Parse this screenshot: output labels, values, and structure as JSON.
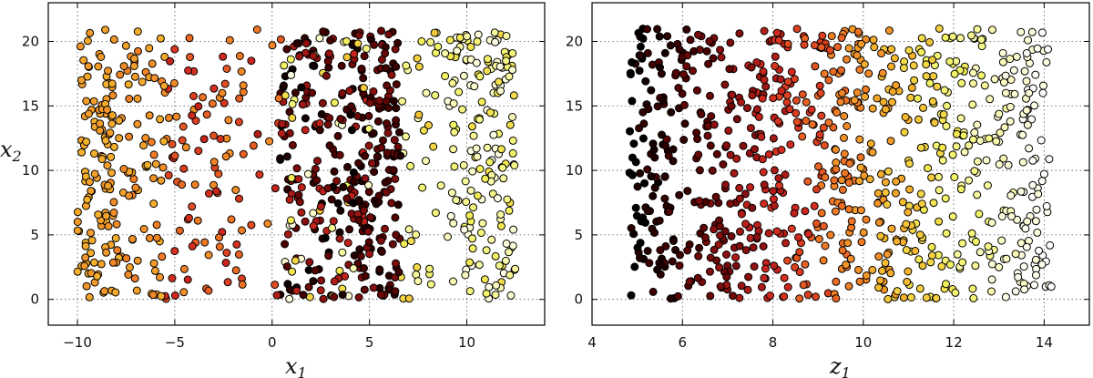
{
  "chart_data": [
    {
      "type": "scatter",
      "title": "",
      "xlabel": "x",
      "xlabel_sub": "1",
      "ylabel": "x",
      "ylabel_sub": "2",
      "xlim": [
        -11.5,
        14
      ],
      "ylim": [
        -2,
        23
      ],
      "xticks": [
        -10,
        -5,
        0,
        5,
        10
      ],
      "yticks": [
        0,
        5,
        10,
        15,
        20
      ],
      "grid": true,
      "colormap": "hot",
      "colormap_colors": [
        "#000000",
        "#4a0000",
        "#8b0f0f",
        "#d42a20",
        "#f07a25",
        "#f5b52d",
        "#f2f25c",
        "#fbfbc8",
        "#ffffff"
      ],
      "bands": [
        {
          "x_range": [
            -10,
            -8.2
          ],
          "color_levels": [
            0.55,
            0.62
          ],
          "count": 110
        },
        {
          "x_range": [
            -8.2,
            -5.5
          ],
          "color_levels": [
            0.5,
            0.62
          ],
          "count": 90
        },
        {
          "x_range": [
            -5.5,
            -1.2
          ],
          "color_levels": [
            0.35,
            0.55
          ],
          "count": 95
        },
        {
          "x_range": [
            -1.2,
            0.5
          ],
          "color_levels": [
            0.3,
            0.55
          ],
          "count": 15
        },
        {
          "x_range": [
            0.4,
            5.0
          ],
          "color_levels": [
            0.0,
            0.35
          ],
          "count": 200
        },
        {
          "x_range": [
            0.4,
            5.0
          ],
          "color_levels": [
            0.65,
            0.95
          ],
          "count": 45
        },
        {
          "x_range": [
            4.4,
            6.6
          ],
          "color_levels": [
            0.05,
            0.25
          ],
          "count": 140
        },
        {
          "x_range": [
            6.6,
            9.0
          ],
          "color_levels": [
            0.65,
            0.85
          ],
          "count": 40
        },
        {
          "x_range": [
            9.0,
            12.5
          ],
          "color_levels": [
            0.7,
            0.95
          ],
          "count": 170
        }
      ],
      "y_range": [
        0,
        21
      ]
    },
    {
      "type": "scatter",
      "title": "",
      "xlabel": "z",
      "xlabel_sub": "1",
      "ylabel": "",
      "xlim": [
        4,
        15
      ],
      "ylim": [
        -2,
        23
      ],
      "xticks": [
        4,
        6,
        8,
        10,
        12,
        14
      ],
      "yticks": [
        0,
        5,
        10,
        15,
        20
      ],
      "grid": true,
      "colormap": "hot",
      "color_gradient": {
        "z_from": 4.8,
        "z_to": 14.2,
        "level_from": 0.0,
        "level_to": 1.0
      },
      "z_range": [
        4.8,
        14.2
      ],
      "count": 900,
      "y_range": [
        0,
        21
      ]
    }
  ]
}
